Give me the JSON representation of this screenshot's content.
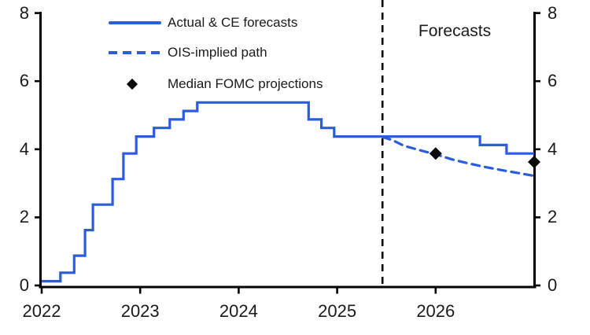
{
  "colors": {
    "line_blue": "#2b5cd9",
    "axis_black": "#000000",
    "marker_black": "#0a0a0a",
    "text": "#1a1a1a",
    "background": "#ffffff"
  },
  "legend": {
    "items": [
      {
        "label": "Actual & CE forecasts",
        "swatch": "solid-line"
      },
      {
        "label": "OIS-implied path",
        "swatch": "dashed-line"
      },
      {
        "label": "Median FOMC projections",
        "swatch": "diamond"
      }
    ]
  },
  "annotations": {
    "forecast_region_label": "Forecasts",
    "divider_x": 2025.46,
    "divider_style": "dashed"
  },
  "chart_data": {
    "type": "line",
    "title": "",
    "xlabel": "",
    "ylabel": "",
    "xlim": [
      2022,
      2027
    ],
    "ylim": [
      0,
      8
    ],
    "grid": false,
    "dual_y_axis": true,
    "legend_position": "top-left",
    "x_ticks": [
      {
        "value": 2022,
        "label": "2022"
      },
      {
        "value": 2023,
        "label": "2023"
      },
      {
        "value": 2024,
        "label": "2024"
      },
      {
        "value": 2025,
        "label": "2025"
      },
      {
        "value": 2026,
        "label": "2026"
      }
    ],
    "y_ticks": [
      {
        "value": 0,
        "label": "0"
      },
      {
        "value": 2,
        "label": "2"
      },
      {
        "value": 4,
        "label": "4"
      },
      {
        "value": 6,
        "label": "6"
      },
      {
        "value": 8,
        "label": "8"
      }
    ],
    "series": [
      {
        "name": "Actual & CE forecasts",
        "draw": "step",
        "style": "solid",
        "color_key": "line_blue",
        "points": [
          [
            2022.0,
            0.125
          ],
          [
            2022.19,
            0.375
          ],
          [
            2022.33,
            0.875
          ],
          [
            2022.44,
            1.625
          ],
          [
            2022.52,
            2.375
          ],
          [
            2022.72,
            3.125
          ],
          [
            2022.83,
            3.875
          ],
          [
            2022.96,
            4.375
          ],
          [
            2023.14,
            4.625
          ],
          [
            2023.3,
            4.875
          ],
          [
            2023.44,
            5.125
          ],
          [
            2023.58,
            5.375
          ],
          [
            2024.71,
            4.875
          ],
          [
            2024.84,
            4.625
          ],
          [
            2024.97,
            4.375
          ],
          [
            2026.45,
            4.125
          ],
          [
            2026.72,
            3.875
          ],
          [
            2027.0,
            3.875
          ]
        ]
      },
      {
        "name": "OIS-implied path",
        "draw": "line",
        "style": "dashed",
        "color_key": "line_blue",
        "points": [
          [
            2025.46,
            4.36
          ],
          [
            2025.56,
            4.27
          ],
          [
            2025.68,
            4.1
          ],
          [
            2025.87,
            3.95
          ],
          [
            2026.0,
            3.85
          ],
          [
            2026.17,
            3.7
          ],
          [
            2026.34,
            3.58
          ],
          [
            2026.5,
            3.48
          ],
          [
            2026.68,
            3.38
          ],
          [
            2026.86,
            3.29
          ],
          [
            2027.0,
            3.22
          ]
        ]
      },
      {
        "name": "Median FOMC projections",
        "draw": "scatter",
        "style": "diamond",
        "color_key": "marker_black",
        "points": [
          [
            2026.0,
            3.875
          ],
          [
            2027.0,
            3.625
          ]
        ]
      }
    ]
  }
}
